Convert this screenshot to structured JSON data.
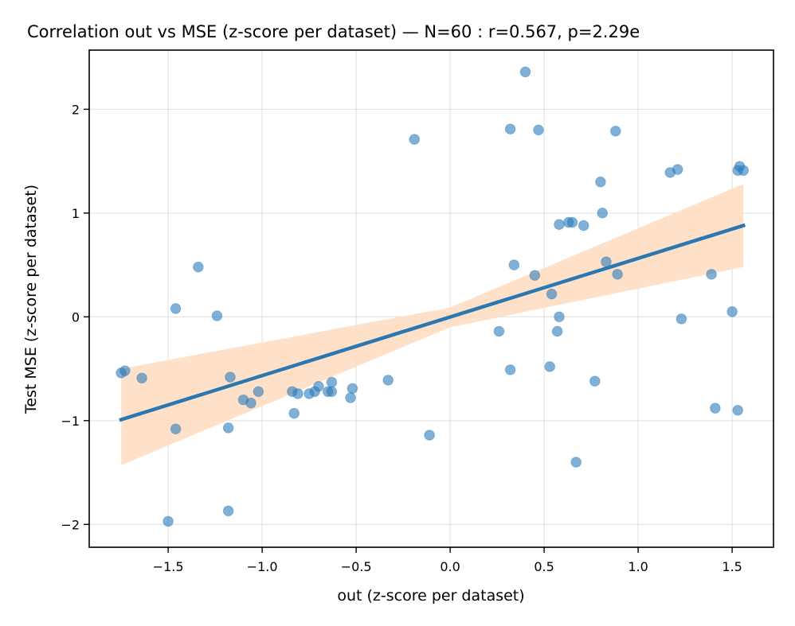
{
  "chart_data": {
    "type": "scatter",
    "title": "Correlation out vs MSE (z-score per dataset) — N=60 : r=0.567, p=2.29e",
    "xlabel": "out (z-score per dataset)",
    "ylabel": "Test MSE (z-score per dataset)",
    "xlim": [
      -1.92,
      1.72
    ],
    "ylim": [
      -2.22,
      2.57
    ],
    "grid": true,
    "xticks": [
      -1.5,
      -1.0,
      -0.5,
      0.0,
      0.5,
      1.0,
      1.5
    ],
    "xtick_labels": [
      "−1.5",
      "−1.0",
      "−0.5",
      "0.0",
      "0.5",
      "1.0",
      "1.5"
    ],
    "yticks": [
      -2,
      -1,
      0,
      1,
      2
    ],
    "ytick_labels": [
      "−2",
      "−1",
      "0",
      "1",
      "2"
    ],
    "colors": {
      "points": "#2b7bba",
      "line": "#2a78b1",
      "band": "#ffdcbf"
    },
    "regression": {
      "x": [
        -1.75,
        1.56
      ],
      "y": [
        -0.99,
        0.88
      ],
      "ci_x": [
        -1.75,
        0.0,
        1.56
      ],
      "ci_lower": [
        -1.43,
        -0.1,
        0.48
      ],
      "ci_upper": [
        -0.5,
        0.09,
        1.28
      ]
    },
    "points": [
      {
        "x": 0.4,
        "y": 2.36
      },
      {
        "x": 0.32,
        "y": 1.81
      },
      {
        "x": 0.47,
        "y": 1.8
      },
      {
        "x": 0.88,
        "y": 1.79
      },
      {
        "x": -0.19,
        "y": 1.71
      },
      {
        "x": 1.54,
        "y": 1.45
      },
      {
        "x": 1.53,
        "y": 1.41
      },
      {
        "x": 1.56,
        "y": 1.41
      },
      {
        "x": 1.21,
        "y": 1.42
      },
      {
        "x": 1.17,
        "y": 1.39
      },
      {
        "x": 0.8,
        "y": 1.3
      },
      {
        "x": 0.81,
        "y": 1.0
      },
      {
        "x": 0.63,
        "y": 0.91
      },
      {
        "x": 0.65,
        "y": 0.91
      },
      {
        "x": 0.58,
        "y": 0.89
      },
      {
        "x": 0.71,
        "y": 0.88
      },
      {
        "x": 0.83,
        "y": 0.53
      },
      {
        "x": 0.34,
        "y": 0.5
      },
      {
        "x": 0.89,
        "y": 0.41
      },
      {
        "x": 0.45,
        "y": 0.4
      },
      {
        "x": 1.39,
        "y": 0.41
      },
      {
        "x": -1.34,
        "y": 0.48
      },
      {
        "x": -1.46,
        "y": 0.08
      },
      {
        "x": -1.24,
        "y": 0.01
      },
      {
        "x": 0.54,
        "y": 0.22
      },
      {
        "x": 0.58,
        "y": 0.0
      },
      {
        "x": 1.23,
        "y": -0.02
      },
      {
        "x": 1.5,
        "y": 0.05
      },
      {
        "x": 0.26,
        "y": -0.14
      },
      {
        "x": 0.57,
        "y": -0.14
      },
      {
        "x": 0.32,
        "y": -0.51
      },
      {
        "x": 0.53,
        "y": -0.48
      },
      {
        "x": 0.77,
        "y": -0.62
      },
      {
        "x": -0.33,
        "y": -0.61
      },
      {
        "x": -1.73,
        "y": -0.52
      },
      {
        "x": -1.75,
        "y": -0.54
      },
      {
        "x": -1.64,
        "y": -0.59
      },
      {
        "x": -1.17,
        "y": -0.58
      },
      {
        "x": -0.63,
        "y": -0.63
      },
      {
        "x": -0.7,
        "y": -0.67
      },
      {
        "x": -1.02,
        "y": -0.72
      },
      {
        "x": -0.52,
        "y": -0.69
      },
      {
        "x": -0.84,
        "y": -0.72
      },
      {
        "x": -0.81,
        "y": -0.74
      },
      {
        "x": -0.75,
        "y": -0.74
      },
      {
        "x": -0.72,
        "y": -0.72
      },
      {
        "x": -0.65,
        "y": -0.72
      },
      {
        "x": -0.63,
        "y": -0.72
      },
      {
        "x": -0.53,
        "y": -0.78
      },
      {
        "x": -1.1,
        "y": -0.8
      },
      {
        "x": -1.06,
        "y": -0.83
      },
      {
        "x": -0.83,
        "y": -0.93
      },
      {
        "x": -1.46,
        "y": -1.08
      },
      {
        "x": -1.18,
        "y": -1.07
      },
      {
        "x": -0.11,
        "y": -1.14
      },
      {
        "x": 0.67,
        "y": -1.4
      },
      {
        "x": 1.41,
        "y": -0.88
      },
      {
        "x": 1.53,
        "y": -0.9
      },
      {
        "x": -1.5,
        "y": -1.97
      },
      {
        "x": -1.18,
        "y": -1.87
      }
    ]
  }
}
